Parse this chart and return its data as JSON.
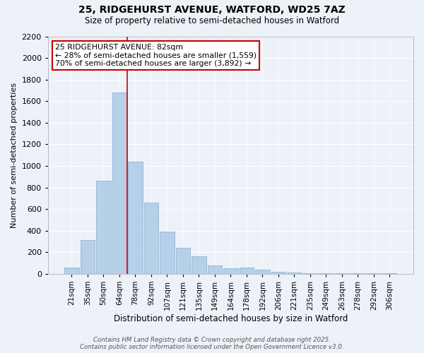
{
  "title_line1": "25, RIDGEHURST AVENUE, WATFORD, WD25 7AZ",
  "title_line2": "Size of property relative to semi-detached houses in Watford",
  "xlabel": "Distribution of semi-detached houses by size in Watford",
  "ylabel": "Number of semi-detached properties",
  "categories": [
    "21sqm",
    "35sqm",
    "50sqm",
    "64sqm",
    "78sqm",
    "92sqm",
    "107sqm",
    "121sqm",
    "135sqm",
    "149sqm",
    "164sqm",
    "178sqm",
    "192sqm",
    "206sqm",
    "221sqm",
    "235sqm",
    "249sqm",
    "263sqm",
    "278sqm",
    "292sqm",
    "306sqm"
  ],
  "values": [
    60,
    310,
    860,
    1680,
    1040,
    660,
    390,
    240,
    160,
    80,
    50,
    60,
    40,
    20,
    10,
    5,
    5,
    5,
    5,
    5,
    5
  ],
  "bar_color": "#b8cfe8",
  "bar_edgecolor": "#7aafd4",
  "background_color": "#edf1f8",
  "grid_color": "#ffffff",
  "annotation_title": "25 RIDGEHURST AVENUE: 82sqm",
  "annotation_line1": "← 28% of semi-detached houses are smaller (1,559)",
  "annotation_line2": "70% of semi-detached houses are larger (3,892) →",
  "annotation_box_facecolor": "#ffffff",
  "annotation_box_edgecolor": "#cc0000",
  "vline_color": "#cc0000",
  "vline_x_index": 3.5,
  "footer_line1": "Contains HM Land Registry data © Crown copyright and database right 2025.",
  "footer_line2": "Contains public sector information licensed under the Open Government Licence v3.0.",
  "ylim": [
    0,
    2200
  ],
  "yticks": [
    0,
    200,
    400,
    600,
    800,
    1000,
    1200,
    1400,
    1600,
    1800,
    2000,
    2200
  ]
}
